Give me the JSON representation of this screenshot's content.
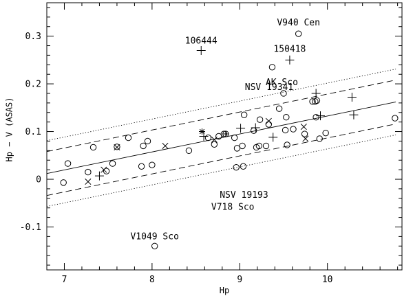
{
  "chart_data": {
    "type": "scatter",
    "title": "",
    "xlabel": "Hp",
    "ylabel": "Hp − V (ASAS)",
    "xlim": [
      6.8,
      10.85
    ],
    "ylim": [
      -0.19,
      0.37
    ],
    "x_ticks": [
      7,
      8,
      9,
      10
    ],
    "x_tick_labels": [
      "7",
      "8",
      "9",
      "10"
    ],
    "x_minor_step": 0.2,
    "y_ticks": [
      -0.1,
      0,
      0.1,
      0.2,
      0.3
    ],
    "y_tick_labels": [
      "-0.1",
      "0",
      "0.1",
      "0.2",
      "0.3"
    ],
    "y_minor_step": 0.02,
    "grid": false,
    "legend": "none",
    "lines": [
      {
        "style": "solid",
        "x": [
          6.8,
          10.78
        ],
        "y": [
          0.012,
          0.162
        ]
      },
      {
        "style": "dashed",
        "x": [
          6.8,
          10.78
        ],
        "y": [
          0.058,
          0.208
        ]
      },
      {
        "style": "dashed",
        "x": [
          6.8,
          10.78
        ],
        "y": [
          -0.034,
          0.116
        ]
      },
      {
        "style": "dotted",
        "x": [
          6.8,
          10.78
        ],
        "y": [
          0.081,
          0.231
        ]
      },
      {
        "style": "dotted",
        "x": [
          6.8,
          10.78
        ],
        "y": [
          -0.057,
          0.093
        ]
      }
    ],
    "series": [
      {
        "marker": "circle",
        "points": [
          [
            6.99,
            -0.007
          ],
          [
            7.04,
            0.033
          ],
          [
            7.27,
            0.015
          ],
          [
            7.33,
            0.067
          ],
          [
            7.48,
            0.017
          ],
          [
            7.55,
            0.033
          ],
          [
            7.6,
            0.068
          ],
          [
            7.73,
            0.087
          ],
          [
            7.88,
            0.027
          ],
          [
            7.9,
            0.07
          ],
          [
            7.95,
            0.08
          ],
          [
            8.0,
            0.03
          ],
          [
            8.03,
            -0.14
          ],
          [
            8.42,
            0.06
          ],
          [
            8.64,
            0.087
          ],
          [
            8.71,
            0.073
          ],
          [
            8.76,
            0.09
          ],
          [
            8.82,
            0.095
          ],
          [
            8.94,
            0.087
          ],
          [
            8.96,
            0.025
          ],
          [
            8.97,
            0.065
          ],
          [
            9.03,
            0.07
          ],
          [
            9.04,
            0.027
          ],
          [
            9.05,
            0.135
          ],
          [
            9.16,
            0.102
          ],
          [
            9.19,
            0.067
          ],
          [
            9.22,
            0.07
          ],
          [
            9.23,
            0.125
          ],
          [
            9.3,
            0.07
          ],
          [
            9.33,
            0.115
          ],
          [
            9.37,
            0.235
          ],
          [
            9.45,
            0.148
          ],
          [
            9.5,
            0.18
          ],
          [
            9.52,
            0.103
          ],
          [
            9.53,
            0.13
          ],
          [
            9.54,
            0.072
          ],
          [
            9.61,
            0.105
          ],
          [
            9.67,
            0.305
          ],
          [
            9.74,
            0.095
          ],
          [
            9.83,
            0.163
          ],
          [
            9.86,
            0.163
          ],
          [
            9.88,
            0.165
          ],
          [
            9.87,
            0.13
          ],
          [
            9.91,
            0.085
          ],
          [
            9.98,
            0.097
          ],
          [
            10.77,
            0.128
          ]
        ]
      },
      {
        "marker": "cross",
        "points": [
          [
            7.27,
            -0.005
          ],
          [
            7.45,
            0.02
          ],
          [
            7.6,
            0.067
          ],
          [
            8.15,
            0.07
          ],
          [
            8.71,
            0.083
          ],
          [
            9.33,
            0.122
          ],
          [
            9.73,
            0.11
          ],
          [
            9.75,
            0.085
          ]
        ]
      },
      {
        "marker": "plus",
        "points": [
          [
            7.4,
            0.007
          ],
          [
            8.56,
            0.27
          ],
          [
            8.59,
            0.09
          ],
          [
            9.01,
            0.107
          ],
          [
            9.18,
            0.108
          ],
          [
            9.38,
            0.088
          ],
          [
            9.57,
            0.25
          ],
          [
            9.87,
            0.18
          ],
          [
            9.92,
            0.133
          ],
          [
            10.28,
            0.172
          ],
          [
            10.3,
            0.135
          ]
        ]
      },
      {
        "marker": "asterisk",
        "points": [
          [
            8.57,
            0.1
          ]
        ]
      },
      {
        "marker": "circle-plus",
        "points": [
          [
            8.84,
            0.095
          ]
        ]
      }
    ],
    "annotations": [
      {
        "text": "V940 Cen",
        "x": 9.67,
        "y": 0.305
      },
      {
        "text": "106444",
        "x": 8.56,
        "y": 0.27
      },
      {
        "text": "150418",
        "x": 9.57,
        "y": 0.25
      },
      {
        "text": "AK Sco",
        "x": 9.37,
        "y": 0.235
      },
      {
        "text": "NSV 19341",
        "x": 9.5,
        "y": 0.18
      },
      {
        "text": "NSV 19193",
        "x": 8.97,
        "y": 0.065
      },
      {
        "text": "V718 Sco",
        "x": 8.96,
        "y": 0.025
      },
      {
        "text": "V1049 Sco",
        "x": 8.03,
        "y": -0.14
      }
    ]
  }
}
